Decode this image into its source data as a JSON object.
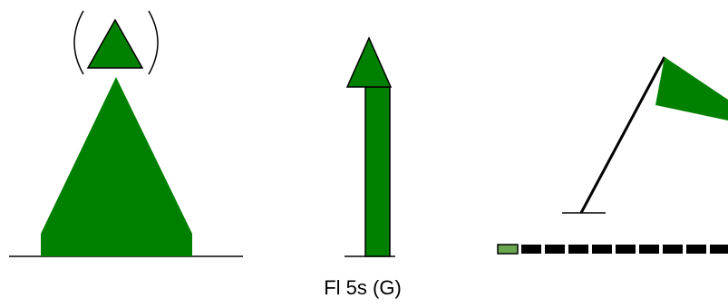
{
  "caption": "Fl 5s (G)"
}
